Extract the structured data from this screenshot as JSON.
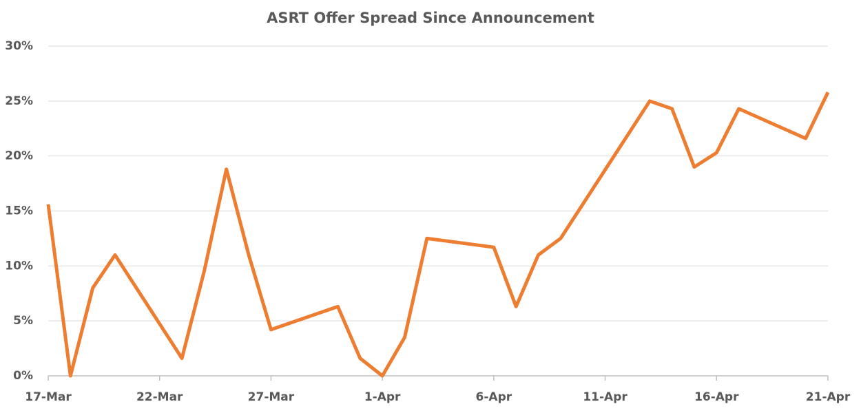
{
  "chart_data": {
    "type": "line",
    "title": "ASRT Offer Spread Since Announcement",
    "x": [
      "17-Mar",
      "18-Mar",
      "19-Mar",
      "20-Mar",
      "23-Mar",
      "24-Mar",
      "25-Mar",
      "26-Mar",
      "27-Mar",
      "30-Mar",
      "31-Mar",
      "1-Apr",
      "2-Apr",
      "3-Apr",
      "6-Apr",
      "7-Apr",
      "8-Apr",
      "9-Apr",
      "13-Apr",
      "14-Apr",
      "15-Apr",
      "16-Apr",
      "17-Apr",
      "20-Apr",
      "21-Apr"
    ],
    "series": [
      {
        "name": "ASRT Offer Spread",
        "color": "#ed7d31",
        "values": [
          15.6,
          0,
          8,
          11,
          1.6,
          9.5,
          18.8,
          11,
          4.2,
          6.3,
          1.6,
          0,
          3.5,
          12.5,
          11.7,
          6.3,
          11,
          12.5,
          25,
          24.3,
          19,
          20.3,
          24.3,
          21.6,
          25.8
        ]
      }
    ],
    "xlim": [
      "17-Mar",
      "21-Apr"
    ],
    "xticks": [
      "17-Mar",
      "22-Mar",
      "27-Mar",
      "1-Apr",
      "6-Apr",
      "11-Apr",
      "16-Apr",
      "21-Apr"
    ],
    "ylim": [
      0,
      30
    ],
    "yticks": [
      {
        "value": 0,
        "label": "0%"
      },
      {
        "value": 5,
        "label": "5%"
      },
      {
        "value": 10,
        "label": "10%"
      },
      {
        "value": 15,
        "label": "15%"
      },
      {
        "value": 20,
        "label": "20%"
      },
      {
        "value": 25,
        "label": "25%"
      },
      {
        "value": 30,
        "label": "30%"
      }
    ],
    "grid": true
  }
}
